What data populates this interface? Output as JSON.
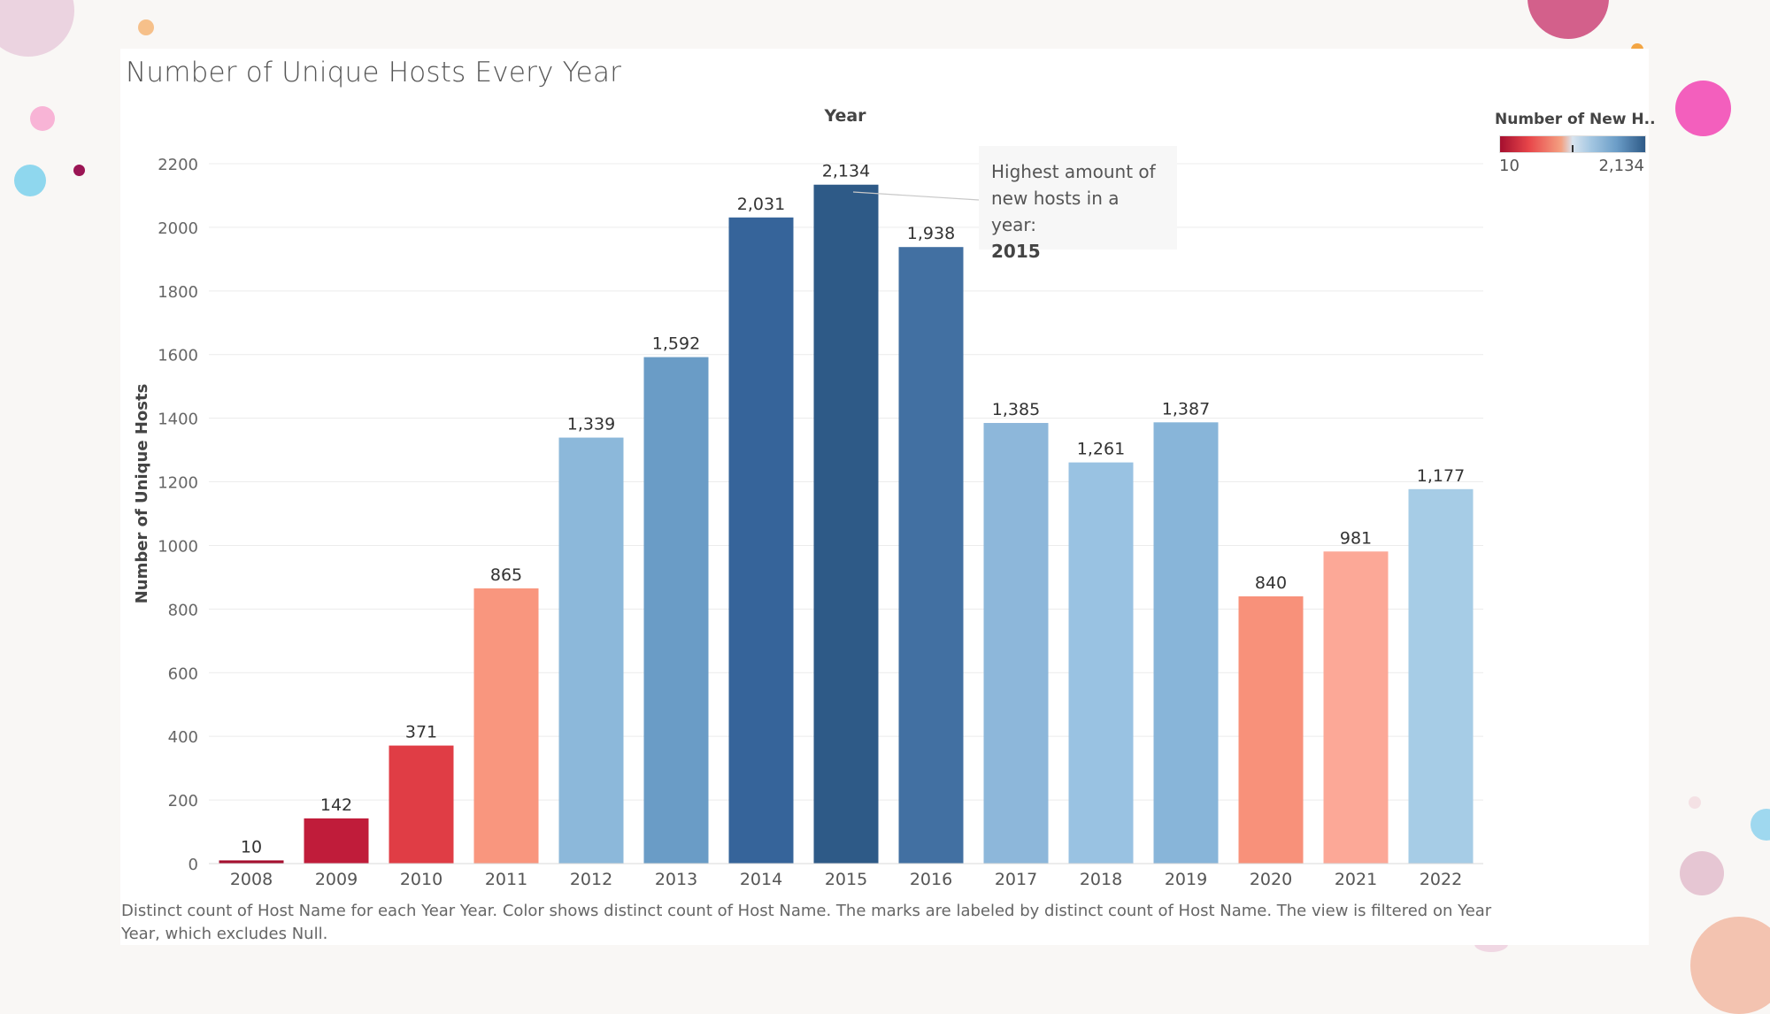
{
  "chart_data": {
    "type": "bar",
    "title": "Number of Unique Hosts Every Year",
    "xlabel": "Year",
    "ylabel": "Number of Unique Hosts",
    "categories": [
      "2008",
      "2009",
      "2010",
      "2011",
      "2012",
      "2013",
      "2014",
      "2015",
      "2016",
      "2017",
      "2018",
      "2019",
      "2020",
      "2021",
      "2022"
    ],
    "values": [
      10,
      142,
      371,
      865,
      1339,
      1592,
      2031,
      2134,
      1938,
      1385,
      1261,
      1387,
      840,
      981,
      1177
    ],
    "value_labels": [
      "10",
      "142",
      "371",
      "865",
      "1,339",
      "1,592",
      "2,031",
      "2,134",
      "1,938",
      "1,385",
      "1,261",
      "1,387",
      "840",
      "981",
      "1,177"
    ],
    "bar_colors": [
      "#a50f2f",
      "#c01c3a",
      "#e03d45",
      "#f9967e",
      "#8cb8da",
      "#6a9cc6",
      "#36649a",
      "#2e5a87",
      "#4270a2",
      "#8db7da",
      "#99c2e2",
      "#88b5d9",
      "#f8917a",
      "#fca897",
      "#a6cce6"
    ],
    "yticks": [
      0,
      200,
      400,
      600,
      800,
      1000,
      1200,
      1400,
      1600,
      1800,
      2000,
      2200
    ],
    "ylim": [
      0,
      2300
    ],
    "grid": true,
    "legend": {
      "title": "Number of New H..",
      "min_label": "10",
      "max_label": "2,134",
      "placement": "top-right"
    },
    "annotation": {
      "line1": "Highest amount of",
      "line2": "new hosts in a year:",
      "year": "2015"
    }
  },
  "caption": "Distinct count of Host Name for each Year Year.  Color shows distinct count of Host Name.  The marks are labeled by distinct count of Host Name. The view is filtered on Year Year, which excludes Null."
}
